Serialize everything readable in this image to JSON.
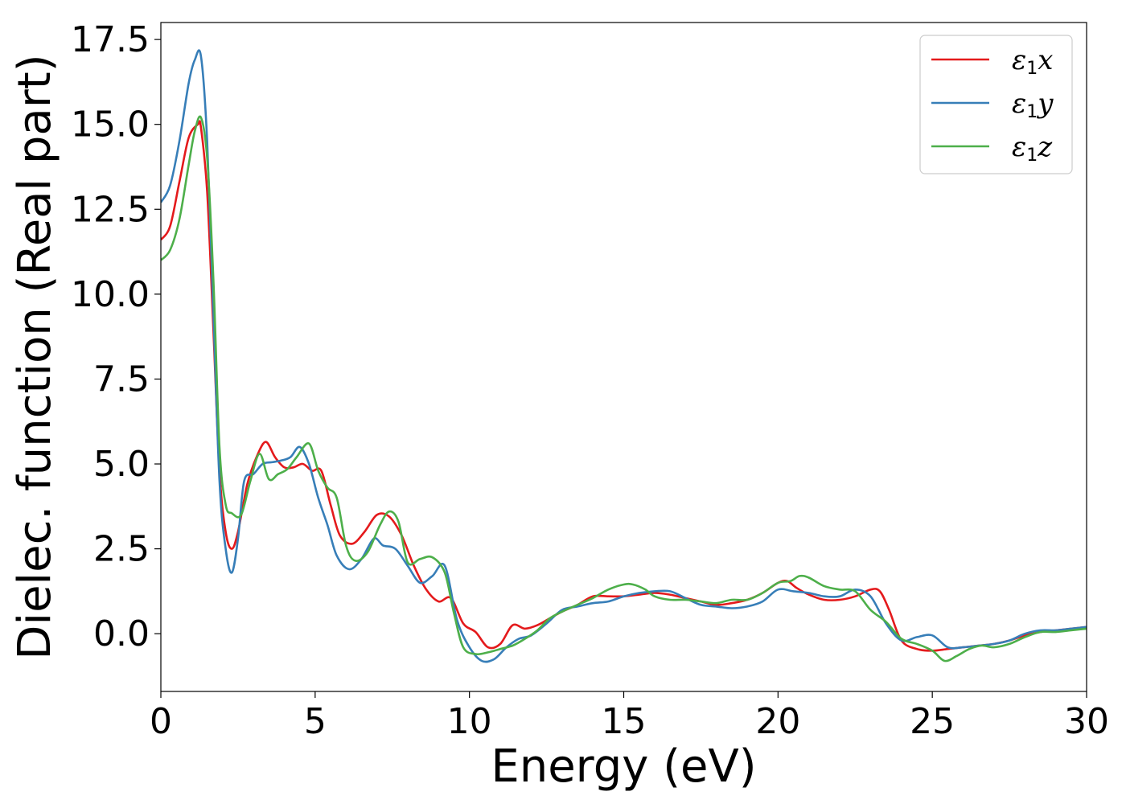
{
  "chart_data": {
    "type": "line",
    "xlabel": "Energy (eV)",
    "ylabel": "Dielec. function (Real part)",
    "xlim": [
      0,
      30
    ],
    "ylim": [
      -1.7,
      18.0
    ],
    "xticks": [
      "0",
      "5",
      "10",
      "15",
      "20",
      "25",
      "30"
    ],
    "yticks": [
      "0.0",
      "2.5",
      "5.0",
      "7.5",
      "10.0",
      "12.5",
      "15.0",
      "17.5"
    ],
    "grid": false,
    "legend_position": "top-right",
    "series": [
      {
        "name": "ε1x",
        "legend": {
          "base": "ε",
          "sub": "1",
          "tail": "x"
        },
        "color": "#e41a1c",
        "x": [
          0,
          0.3,
          0.6,
          0.9,
          1.2,
          1.3,
          1.5,
          1.7,
          1.9,
          2.1,
          2.3,
          2.5,
          2.8,
          3.1,
          3.4,
          3.7,
          4.0,
          4.3,
          4.6,
          4.9,
          5.2,
          5.5,
          5.8,
          6.2,
          6.6,
          7.0,
          7.4,
          7.8,
          8.2,
          8.6,
          9.0,
          9.4,
          9.8,
          10.2,
          10.6,
          11.0,
          11.4,
          11.8,
          12.2,
          12.6,
          13.0,
          13.5,
          14.0,
          14.5,
          15.0,
          15.5,
          16.0,
          16.5,
          17.0,
          17.5,
          18.0,
          18.5,
          19.0,
          19.5,
          20.0,
          20.3,
          20.6,
          21.0,
          21.5,
          22.0,
          22.5,
          23.0,
          23.3,
          23.6,
          24.0,
          24.5,
          25.0,
          25.5,
          26.0,
          26.5,
          27.0,
          27.5,
          28.0,
          28.5,
          29.0,
          29.5,
          30.0
        ],
        "y": [
          11.6,
          12.0,
          13.3,
          14.6,
          15.0,
          14.9,
          13.0,
          9.0,
          4.8,
          3.0,
          2.5,
          3.0,
          4.4,
          5.2,
          5.65,
          5.2,
          4.9,
          4.9,
          5.0,
          4.8,
          4.8,
          3.8,
          2.9,
          2.65,
          3.0,
          3.5,
          3.45,
          2.9,
          2.0,
          1.3,
          0.95,
          1.05,
          0.3,
          0.05,
          -0.4,
          -0.3,
          0.25,
          0.15,
          0.25,
          0.45,
          0.65,
          0.85,
          1.1,
          1.1,
          1.1,
          1.15,
          1.2,
          1.15,
          1.05,
          0.95,
          0.85,
          0.9,
          1.0,
          1.2,
          1.5,
          1.55,
          1.35,
          1.15,
          1.0,
          1.0,
          1.1,
          1.3,
          1.25,
          0.7,
          -0.2,
          -0.45,
          -0.5,
          -0.45,
          -0.4,
          -0.35,
          -0.3,
          -0.2,
          -0.05,
          0.05,
          0.1,
          0.15,
          0.2
        ]
      },
      {
        "name": "ε1y",
        "legend": {
          "base": "ε",
          "sub": "1",
          "tail": "y"
        },
        "color": "#377eb8",
        "x": [
          0,
          0.3,
          0.6,
          0.9,
          1.1,
          1.3,
          1.5,
          1.7,
          1.9,
          2.1,
          2.3,
          2.5,
          2.7,
          3.0,
          3.3,
          3.6,
          3.9,
          4.2,
          4.5,
          4.8,
          5.1,
          5.4,
          5.7,
          6.1,
          6.5,
          6.9,
          7.2,
          7.6,
          8.0,
          8.4,
          8.8,
          9.2,
          9.6,
          10.0,
          10.4,
          10.8,
          11.2,
          11.6,
          12.0,
          12.5,
          13.0,
          13.5,
          14.0,
          14.5,
          15.0,
          15.5,
          16.0,
          16.5,
          17.0,
          17.5,
          18.0,
          18.5,
          19.0,
          19.5,
          20.0,
          20.5,
          21.0,
          21.5,
          22.0,
          22.5,
          23.0,
          23.5,
          24.0,
          24.5,
          25.0,
          25.5,
          26.0,
          26.5,
          27.0,
          27.5,
          28.0,
          28.5,
          29.0,
          29.5,
          30.0
        ],
        "y": [
          12.7,
          13.2,
          14.5,
          16.2,
          16.9,
          17.0,
          14.5,
          9.5,
          4.5,
          2.5,
          1.8,
          2.8,
          4.5,
          4.7,
          5.0,
          5.05,
          5.1,
          5.2,
          5.5,
          5.0,
          4.0,
          3.2,
          2.3,
          1.9,
          2.2,
          2.8,
          2.6,
          2.5,
          2.0,
          1.5,
          1.7,
          2.0,
          0.4,
          -0.4,
          -0.8,
          -0.75,
          -0.4,
          -0.15,
          -0.05,
          0.3,
          0.7,
          0.8,
          0.9,
          0.95,
          1.1,
          1.2,
          1.25,
          1.25,
          1.05,
          0.85,
          0.8,
          0.75,
          0.8,
          0.95,
          1.3,
          1.25,
          1.2,
          1.1,
          1.1,
          1.3,
          1.1,
          0.3,
          -0.2,
          -0.1,
          -0.05,
          -0.4,
          -0.4,
          -0.35,
          -0.3,
          -0.2,
          0.0,
          0.1,
          0.1,
          0.15,
          0.2
        ]
      },
      {
        "name": "ε1z",
        "legend": {
          "base": "ε",
          "sub": "1",
          "tail": "z"
        },
        "color": "#4daf4a",
        "x": [
          0,
          0.3,
          0.6,
          0.9,
          1.1,
          1.3,
          1.5,
          1.7,
          1.9,
          2.1,
          2.3,
          2.6,
          2.9,
          3.2,
          3.5,
          3.8,
          4.1,
          4.4,
          4.8,
          5.1,
          5.4,
          5.7,
          6.0,
          6.3,
          6.7,
          7.1,
          7.4,
          7.7,
          8.0,
          8.4,
          8.8,
          9.2,
          9.5,
          9.8,
          10.2,
          10.6,
          11.0,
          11.4,
          11.8,
          12.2,
          12.6,
          13.0,
          13.5,
          14.0,
          14.5,
          15.0,
          15.3,
          15.7,
          16.0,
          16.5,
          17.0,
          17.5,
          18.0,
          18.5,
          19.0,
          19.5,
          20.0,
          20.4,
          20.7,
          21.0,
          21.5,
          22.0,
          22.5,
          23.0,
          23.5,
          24.0,
          24.5,
          25.0,
          25.4,
          25.8,
          26.2,
          26.6,
          27.0,
          27.5,
          28.0,
          28.5,
          29.0,
          29.5,
          30.0
        ],
        "y": [
          11.0,
          11.3,
          12.2,
          13.8,
          14.8,
          15.2,
          14.0,
          10.5,
          5.5,
          3.8,
          3.55,
          3.5,
          4.5,
          5.3,
          4.55,
          4.7,
          4.85,
          5.2,
          5.6,
          4.8,
          4.3,
          4.0,
          2.6,
          2.15,
          2.4,
          3.2,
          3.6,
          3.3,
          2.1,
          2.2,
          2.25,
          1.8,
          0.6,
          -0.4,
          -0.6,
          -0.55,
          -0.45,
          -0.35,
          -0.15,
          0.1,
          0.45,
          0.65,
          0.85,
          1.05,
          1.3,
          1.45,
          1.45,
          1.3,
          1.1,
          1.0,
          1.0,
          0.95,
          0.9,
          1.0,
          1.0,
          1.2,
          1.5,
          1.55,
          1.7,
          1.65,
          1.4,
          1.3,
          1.25,
          0.7,
          0.35,
          -0.15,
          -0.3,
          -0.5,
          -0.8,
          -0.65,
          -0.45,
          -0.35,
          -0.4,
          -0.3,
          -0.1,
          0.05,
          0.05,
          0.1,
          0.15
        ]
      }
    ]
  }
}
